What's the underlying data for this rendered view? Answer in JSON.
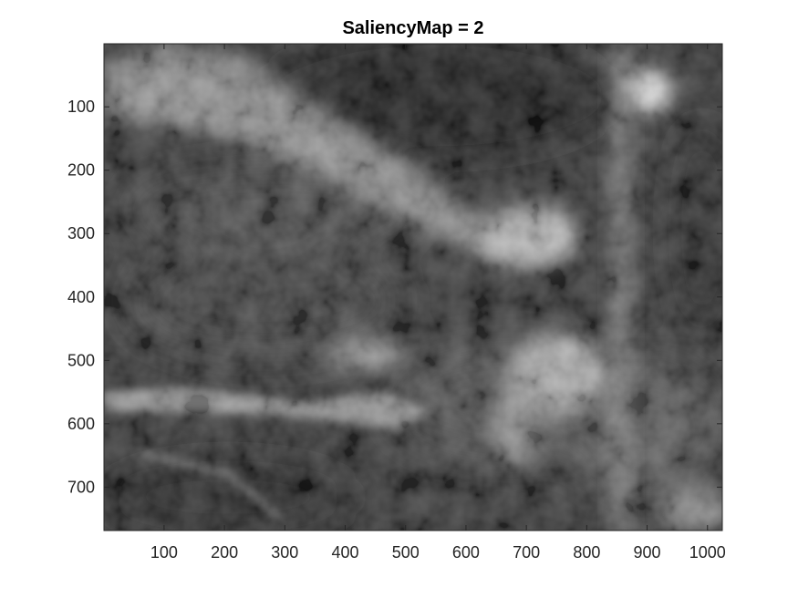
{
  "chart_data": {
    "type": "heatmap",
    "title": "SaliencyMap = 2",
    "colormap": "gray",
    "x_range": [
      1,
      1024
    ],
    "y_range": [
      1,
      768
    ],
    "y_direction": "reversed",
    "grid": false,
    "x_ticks": [
      100,
      200,
      300,
      400,
      500,
      600,
      700,
      800,
      900,
      1000
    ],
    "y_ticks": [
      100,
      200,
      300,
      400,
      500,
      600,
      700
    ],
    "x_tick_labels": [
      "100",
      "200",
      "300",
      "400",
      "500",
      "600",
      "700",
      "800",
      "900",
      "1000"
    ],
    "y_tick_labels": [
      "100",
      "200",
      "300",
      "400",
      "500",
      "600",
      "700"
    ],
    "colors": {
      "background": "#ffffff",
      "axis": "#262626",
      "image_base": "#303030"
    },
    "features": [
      {
        "name": "diagonal-bright-band",
        "from": [
          0,
          60
        ],
        "to": [
          620,
          300
        ],
        "intensity": 0.7
      },
      {
        "name": "vertical-bright-column",
        "x": 880,
        "y_from": 10,
        "y_to": 768,
        "intensity": 0.55
      },
      {
        "name": "bright-spot-top-right",
        "x": 910,
        "y": 80,
        "intensity": 1.0
      },
      {
        "name": "bright-blob-center",
        "x": 700,
        "y": 280,
        "intensity": 0.8
      },
      {
        "name": "bright-blob-lower-center",
        "x": 720,
        "y": 520,
        "intensity": 0.75
      },
      {
        "name": "bright-streak-left",
        "from": [
          0,
          570
        ],
        "to": [
          520,
          520
        ],
        "intensity": 0.6
      },
      {
        "name": "dark-region-top",
        "x": 530,
        "y": 80,
        "intensity": 0.05
      },
      {
        "name": "dark-region-bottom-left",
        "x": 200,
        "y": 710,
        "intensity": 0.1
      }
    ]
  }
}
